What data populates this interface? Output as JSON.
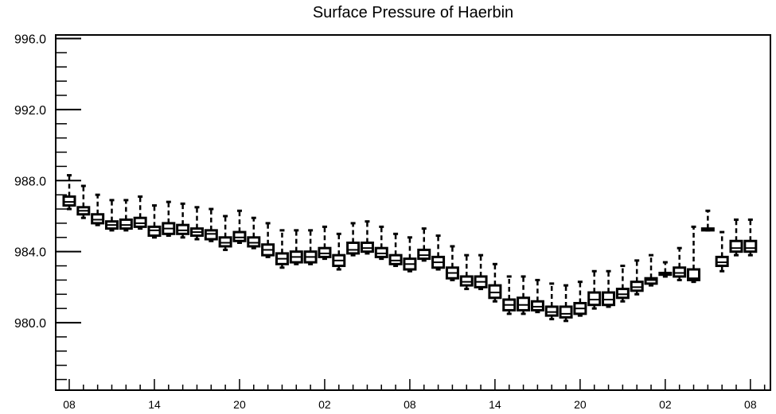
{
  "chart_data": {
    "type": "box",
    "title": "Surface Pressure of Haerbin",
    "xlabel": "",
    "ylabel": "",
    "ylim": [
      976.2,
      996.2
    ],
    "y_major_ticks": [
      980.0,
      984.0,
      988.0,
      992.0,
      996.0
    ],
    "y_tick_labels": [
      "980.0",
      "984.0",
      "988.0",
      "992.0",
      "996.0"
    ],
    "y_minor_step": 0.8,
    "x_range": [
      0,
      49
    ],
    "x_tick_positions": [
      0,
      6,
      12,
      18,
      24,
      30,
      36,
      42,
      48
    ],
    "x_tick_labels": [
      "08",
      "14",
      "20",
      "02",
      "08",
      "14",
      "20",
      "02",
      "08"
    ],
    "grid": false,
    "boxes": [
      {
        "x": 0,
        "min": 986.4,
        "q1": 986.6,
        "median": 986.8,
        "q3": 987.1,
        "max": 988.3
      },
      {
        "x": 1,
        "min": 985.9,
        "q1": 986.1,
        "median": 986.3,
        "q3": 986.5,
        "max": 987.7
      },
      {
        "x": 2,
        "min": 985.5,
        "q1": 985.6,
        "median": 985.8,
        "q3": 986.1,
        "max": 987.2
      },
      {
        "x": 3,
        "min": 985.2,
        "q1": 985.3,
        "median": 985.5,
        "q3": 985.7,
        "max": 986.9
      },
      {
        "x": 4,
        "min": 985.2,
        "q1": 985.3,
        "median": 985.5,
        "q3": 985.8,
        "max": 986.9
      },
      {
        "x": 5,
        "min": 985.3,
        "q1": 985.4,
        "median": 985.6,
        "q3": 985.9,
        "max": 987.1
      },
      {
        "x": 6,
        "min": 984.8,
        "q1": 984.9,
        "median": 985.2,
        "q3": 985.4,
        "max": 986.6
      },
      {
        "x": 7,
        "min": 984.9,
        "q1": 985.0,
        "median": 985.3,
        "q3": 985.6,
        "max": 986.8
      },
      {
        "x": 8,
        "min": 984.8,
        "q1": 985.0,
        "median": 985.2,
        "q3": 985.5,
        "max": 986.7
      },
      {
        "x": 9,
        "min": 984.7,
        "q1": 984.9,
        "median": 985.1,
        "q3": 985.3,
        "max": 986.5
      },
      {
        "x": 10,
        "min": 984.6,
        "q1": 984.7,
        "median": 985.0,
        "q3": 985.2,
        "max": 986.4
      },
      {
        "x": 11,
        "min": 984.1,
        "q1": 984.3,
        "median": 984.5,
        "q3": 984.8,
        "max": 986.0
      },
      {
        "x": 12,
        "min": 984.5,
        "q1": 984.6,
        "median": 984.8,
        "q3": 985.1,
        "max": 986.3
      },
      {
        "x": 13,
        "min": 984.2,
        "q1": 984.3,
        "median": 984.5,
        "q3": 984.8,
        "max": 985.9
      },
      {
        "x": 14,
        "min": 983.7,
        "q1": 983.8,
        "median": 984.1,
        "q3": 984.4,
        "max": 985.6
      },
      {
        "x": 15,
        "min": 983.1,
        "q1": 983.3,
        "median": 983.6,
        "q3": 983.9,
        "max": 985.2
      },
      {
        "x": 16,
        "min": 983.3,
        "q1": 983.4,
        "median": 983.7,
        "q3": 984.0,
        "max": 985.2
      },
      {
        "x": 17,
        "min": 983.3,
        "q1": 983.4,
        "median": 983.7,
        "q3": 984.0,
        "max": 985.2
      },
      {
        "x": 18,
        "min": 983.6,
        "q1": 983.7,
        "median": 983.9,
        "q3": 984.2,
        "max": 985.4
      },
      {
        "x": 19,
        "min": 983.0,
        "q1": 983.2,
        "median": 983.5,
        "q3": 983.8,
        "max": 985.0
      },
      {
        "x": 20,
        "min": 983.8,
        "q1": 983.9,
        "median": 984.1,
        "q3": 984.5,
        "max": 985.6
      },
      {
        "x": 21,
        "min": 983.9,
        "q1": 984.0,
        "median": 984.2,
        "q3": 984.5,
        "max": 985.7
      },
      {
        "x": 22,
        "min": 983.6,
        "q1": 983.7,
        "median": 983.9,
        "q3": 984.2,
        "max": 985.4
      },
      {
        "x": 23,
        "min": 983.2,
        "q1": 983.3,
        "median": 983.5,
        "q3": 983.8,
        "max": 985.0
      },
      {
        "x": 24,
        "min": 982.9,
        "q1": 983.0,
        "median": 983.3,
        "q3": 983.6,
        "max": 984.8
      },
      {
        "x": 25,
        "min": 983.5,
        "q1": 983.6,
        "median": 983.8,
        "q3": 984.1,
        "max": 985.3
      },
      {
        "x": 26,
        "min": 983.0,
        "q1": 983.1,
        "median": 983.4,
        "q3": 983.7,
        "max": 984.9
      },
      {
        "x": 27,
        "min": 982.4,
        "q1": 982.5,
        "median": 982.8,
        "q3": 983.1,
        "max": 984.3
      },
      {
        "x": 28,
        "min": 981.9,
        "q1": 982.1,
        "median": 982.3,
        "q3": 982.6,
        "max": 983.8
      },
      {
        "x": 29,
        "min": 981.9,
        "q1": 982.0,
        "median": 982.3,
        "q3": 982.6,
        "max": 983.8
      },
      {
        "x": 30,
        "min": 981.2,
        "q1": 981.4,
        "median": 981.7,
        "q3": 982.1,
        "max": 983.3
      },
      {
        "x": 31,
        "min": 980.5,
        "q1": 980.7,
        "median": 981.0,
        "q3": 981.3,
        "max": 982.6
      },
      {
        "x": 32,
        "min": 980.5,
        "q1": 980.7,
        "median": 981.0,
        "q3": 981.4,
        "max": 982.6
      },
      {
        "x": 33,
        "min": 980.6,
        "q1": 980.7,
        "median": 980.9,
        "q3": 981.2,
        "max": 982.4
      },
      {
        "x": 34,
        "min": 980.2,
        "q1": 980.4,
        "median": 980.6,
        "q3": 980.9,
        "max": 982.2
      },
      {
        "x": 35,
        "min": 980.1,
        "q1": 980.3,
        "median": 980.5,
        "q3": 980.9,
        "max": 982.1
      },
      {
        "x": 36,
        "min": 980.4,
        "q1": 980.5,
        "median": 980.8,
        "q3": 981.1,
        "max": 982.3
      },
      {
        "x": 37,
        "min": 980.8,
        "q1": 981.0,
        "median": 981.3,
        "q3": 981.7,
        "max": 982.9
      },
      {
        "x": 38,
        "min": 980.9,
        "q1": 981.0,
        "median": 981.3,
        "q3": 981.7,
        "max": 982.9
      },
      {
        "x": 39,
        "min": 981.2,
        "q1": 981.4,
        "median": 981.6,
        "q3": 981.9,
        "max": 983.2
      },
      {
        "x": 40,
        "min": 981.6,
        "q1": 981.8,
        "median": 982.0,
        "q3": 982.3,
        "max": 983.5
      },
      {
        "x": 41,
        "min": 982.1,
        "q1": 982.2,
        "median": 982.4,
        "q3": 982.5,
        "max": 983.8
      },
      {
        "x": 42,
        "min": 982.6,
        "q1": 982.7,
        "median": 982.7,
        "q3": 982.8,
        "max": 983.4
      },
      {
        "x": 43,
        "min": 982.4,
        "q1": 982.6,
        "median": 982.8,
        "q3": 983.1,
        "max": 984.2
      },
      {
        "x": 44,
        "min": 982.3,
        "q1": 982.4,
        "median": 982.5,
        "q3": 983.0,
        "max": 985.4
      },
      {
        "x": 45,
        "min": 985.2,
        "q1": 985.2,
        "median": 985.3,
        "q3": 985.3,
        "max": 986.3
      },
      {
        "x": 46,
        "min": 982.9,
        "q1": 983.2,
        "median": 983.4,
        "q3": 983.7,
        "max": 985.1
      },
      {
        "x": 47,
        "min": 983.8,
        "q1": 984.0,
        "median": 984.2,
        "q3": 984.6,
        "max": 985.8
      },
      {
        "x": 48,
        "min": 983.8,
        "q1": 984.0,
        "median": 984.2,
        "q3": 984.6,
        "max": 985.8
      }
    ]
  }
}
